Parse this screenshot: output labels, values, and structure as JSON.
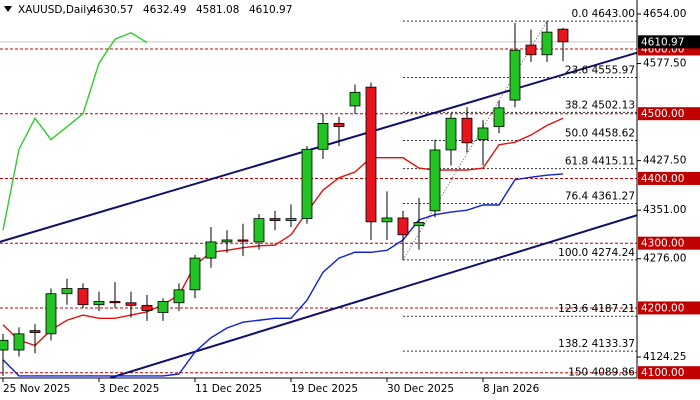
{
  "chart_data": {
    "type": "candlestick",
    "title": "XAUUSD,Daily",
    "categories": [
      "25 Nov 2025",
      null,
      null,
      null,
      null,
      null,
      "3 Dec 2025",
      null,
      null,
      null,
      null,
      null,
      "11 Dec 2025",
      null,
      null,
      null,
      null,
      null,
      "19 Dec 2025",
      null,
      null,
      null,
      null,
      null,
      "30 Dec 2025",
      null,
      null,
      null,
      null,
      null,
      "8 Jan 2026",
      null,
      null,
      null,
      null,
      null
    ],
    "open": [
      4135,
      4135,
      4165,
      4160,
      4222,
      4230,
      4205,
      4210,
      4208,
      4204,
      4193,
      4208,
      4228,
      4277,
      4302,
      4305,
      4302,
      4338,
      4335,
      4338,
      4445,
      4485,
      4512,
      4541,
      4333,
      4339,
      4327,
      4350,
      4444,
      4493,
      4460,
      4480,
      4521,
      4606,
      4591,
      4630.57
    ],
    "high": [
      4160,
      4170,
      4175,
      4230,
      4245,
      4238,
      4225,
      4240,
      4225,
      4220,
      4215,
      4238,
      4282,
      4325,
      4320,
      4330,
      4345,
      4350,
      4360,
      4450,
      4500,
      4495,
      4545,
      4548,
      4380,
      4350,
      4370,
      4460,
      4500,
      4510,
      4490,
      4520,
      4640,
      4630,
      4643,
      4632.49
    ],
    "low": [
      4095,
      4125,
      4130,
      4150,
      4205,
      4200,
      4195,
      4200,
      4185,
      4180,
      4180,
      4195,
      4215,
      4262,
      4285,
      4280,
      4290,
      4320,
      4325,
      4330,
      4430,
      4450,
      4500,
      4305,
      4305,
      4274.24,
      4290,
      4340,
      4420,
      4440,
      4420,
      4470,
      4510,
      4580,
      4580,
      4581.08
    ],
    "close": [
      4150,
      4160,
      4162,
      4222,
      4230,
      4205,
      4210,
      4208,
      4204,
      4196,
      4210,
      4228,
      4277,
      4302,
      4305,
      4303,
      4338,
      4335,
      4338,
      4445,
      4485,
      4480,
      4533,
      4333,
      4339,
      4313,
      4332,
      4444,
      4493,
      4455,
      4478,
      4509,
      4598,
      4591,
      4626,
      4610.97
    ],
    "up_color": "#22c322",
    "down_color": "#e8141e",
    "lines": [
      {
        "color": "#2ecc2e",
        "values": [
          4320,
          4445,
          4493,
          4460,
          4480,
          4500,
          4578,
          4615,
          4625,
          4610,
          null,
          null,
          null,
          null,
          null,
          null,
          null,
          null,
          null,
          null,
          null,
          null,
          null,
          null,
          null,
          null,
          null,
          null,
          null,
          null,
          null,
          null,
          null,
          null,
          null,
          null
        ]
      },
      {
        "color": "#e01010",
        "values": [
          4174,
          4150,
          4142,
          4166,
          4181,
          4189,
          4184,
          4184,
          4189,
          4194,
          4205,
          4220,
          4266,
          4286,
          4289,
          4293,
          4296,
          4297,
          4313,
          4348,
          4382,
          4401,
          4410,
          4432,
          4432,
          4432,
          4416,
          4413,
          4413,
          4413,
          4416,
          4452,
          4456,
          4467,
          4482,
          4493
        ]
      },
      {
        "color": "#1020d0",
        "values": [
          4120,
          4095,
          4095,
          4095,
          4095,
          4095,
          4095,
          4095,
          4095,
          4095,
          4095,
          4098,
          4132,
          4154,
          4169,
          4178,
          4181,
          4184,
          4184,
          4212,
          4255,
          4277,
          4286,
          4286,
          4289,
          4305,
          4336,
          4344,
          4348,
          4351,
          4359,
          4359,
          4398,
          4402,
          4405,
          4407
        ]
      }
    ],
    "trendlines": [
      {
        "color": "#10106a",
        "x": [
          -0.2,
          39.6
        ],
        "y": [
          4302,
          4594
        ]
      },
      {
        "color": "#10106a",
        "x": [
          6.7,
          39.6
        ],
        "y": [
          4092,
          4343
        ]
      }
    ],
    "ylim": [
      4091.8,
      4675.6
    ],
    "yticks": [
      {
        "value": 4654,
        "label": "4654.00"
      },
      {
        "value": 4577.5,
        "label": "4577.50"
      },
      {
        "value": 4427.5,
        "label": "4427.50"
      },
      {
        "value": 4351,
        "label": "4351.00"
      },
      {
        "value": 4276,
        "label": "4276.00"
      },
      {
        "value": 4124.25,
        "label": "4124.25"
      }
    ],
    "levels": [
      {
        "value": 4600,
        "label": "4600.00"
      },
      {
        "value": 4500,
        "label": "4500.00"
      },
      {
        "value": 4400,
        "label": "4400.00"
      },
      {
        "value": 4300,
        "label": "4300.00"
      },
      {
        "value": 4200,
        "label": "4200.00"
      },
      {
        "value": 4100,
        "label": "4100.00"
      }
    ],
    "level_color": "#c00000",
    "fib_levels": [
      {
        "value": 4643,
        "label": "0.0 4643.00"
      },
      {
        "value": 4555.97,
        "label": "23.6 4555.97"
      },
      {
        "value": 4502.13,
        "label": "38.2 4502.13"
      },
      {
        "value": 4458.62,
        "label": "50.0 4458.62"
      },
      {
        "value": 4415.11,
        "label": "61.8 4415.11"
      },
      {
        "value": 4361.27,
        "label": "76.4 4361.27"
      },
      {
        "value": 4274.24,
        "label": "100.0 4274.24"
      },
      {
        "value": 4187.21,
        "label": "123.6 4187.21"
      },
      {
        "value": 4133.37,
        "label": "138.2 4133.37"
      },
      {
        "value": 4089.86,
        "label": "150 4089.86"
      }
    ],
    "grid": false
  }
}
